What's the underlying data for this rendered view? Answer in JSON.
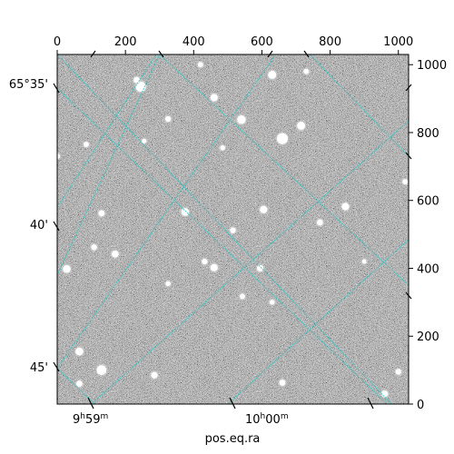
{
  "chart_data": {
    "type": "heatmap",
    "title": "",
    "image": "grayscale astronomical star field with equatorial coordinate overlay",
    "colors": {
      "background_gray": "#7a7a7a",
      "grid_line": "#2ec4c4",
      "star": "#ffffff",
      "frame": "#000000"
    },
    "pixel_axes": {
      "x": {
        "range": [
          0,
          1030
        ],
        "ticks": [
          0,
          200,
          400,
          600,
          800,
          1000
        ],
        "labels": [
          "0",
          "200",
          "400",
          "600",
          "800",
          "1000"
        ],
        "position": "top"
      },
      "y": {
        "range": [
          0,
          1030
        ],
        "ticks": [
          0,
          200,
          400,
          600,
          800,
          1000
        ],
        "labels": [
          "0",
          "200",
          "400",
          "600",
          "800",
          "1000"
        ],
        "position": "right"
      }
    },
    "world_axes": {
      "xlabel": "pos.eq.ra",
      "ylabel": "",
      "ra_ticks": [
        {
          "label_main": "9",
          "label_h": "h",
          "label_min": "59",
          "label_m": "m"
        },
        {
          "label_main": "10",
          "label_h": "h",
          "label_min": "00",
          "label_m": "m"
        }
      ],
      "dec_ticks": [
        "65°35'",
        "40'",
        "45'"
      ]
    },
    "stars": [
      {
        "x": 245,
        "y": 935,
        "mag": 2.0
      },
      {
        "x": 233,
        "y": 955,
        "mag": 1.0
      },
      {
        "x": 630,
        "y": 970,
        "mag": 1.5
      },
      {
        "x": 460,
        "y": 903,
        "mag": 1.3
      },
      {
        "x": 540,
        "y": 838,
        "mag": 1.6
      },
      {
        "x": 660,
        "y": 782,
        "mag": 2.2
      },
      {
        "x": 715,
        "y": 820,
        "mag": 1.5
      },
      {
        "x": 325,
        "y": 840,
        "mag": 0.9
      },
      {
        "x": 85,
        "y": 765,
        "mag": 0.8
      },
      {
        "x": 420,
        "y": 1000,
        "mag": 0.8
      },
      {
        "x": 730,
        "y": 980,
        "mag": 0.8
      },
      {
        "x": 375,
        "y": 566,
        "mag": 1.4
      },
      {
        "x": 605,
        "y": 573,
        "mag": 1.3
      },
      {
        "x": 845,
        "y": 582,
        "mag": 1.3
      },
      {
        "x": 770,
        "y": 535,
        "mag": 1.0
      },
      {
        "x": 515,
        "y": 512,
        "mag": 0.9
      },
      {
        "x": 130,
        "y": 562,
        "mag": 1.0
      },
      {
        "x": 170,
        "y": 442,
        "mag": 1.2
      },
      {
        "x": 108,
        "y": 462,
        "mag": 0.9
      },
      {
        "x": 28,
        "y": 398,
        "mag": 1.4
      },
      {
        "x": 460,
        "y": 402,
        "mag": 1.3
      },
      {
        "x": 432,
        "y": 420,
        "mag": 0.9
      },
      {
        "x": 595,
        "y": 400,
        "mag": 1.1
      },
      {
        "x": 543,
        "y": 317,
        "mag": 0.8
      },
      {
        "x": 325,
        "y": 355,
        "mag": 0.7
      },
      {
        "x": 65,
        "y": 155,
        "mag": 1.4
      },
      {
        "x": 130,
        "y": 100,
        "mag": 1.9
      },
      {
        "x": 65,
        "y": 60,
        "mag": 1.0
      },
      {
        "x": 285,
        "y": 85,
        "mag": 1.1
      },
      {
        "x": 660,
        "y": 63,
        "mag": 1.0
      },
      {
        "x": 960,
        "y": 30,
        "mag": 1.1
      },
      {
        "x": 1000,
        "y": 95,
        "mag": 0.9
      },
      {
        "x": 1020,
        "y": 655,
        "mag": 0.8
      },
      {
        "x": 0,
        "y": 730,
        "mag": 0.8
      },
      {
        "x": 630,
        "y": 300,
        "mag": 0.7
      },
      {
        "x": 485,
        "y": 755,
        "mag": 0.7
      },
      {
        "x": 255,
        "y": 775,
        "mag": 0.6
      },
      {
        "x": 900,
        "y": 420,
        "mag": 0.6
      }
    ]
  }
}
